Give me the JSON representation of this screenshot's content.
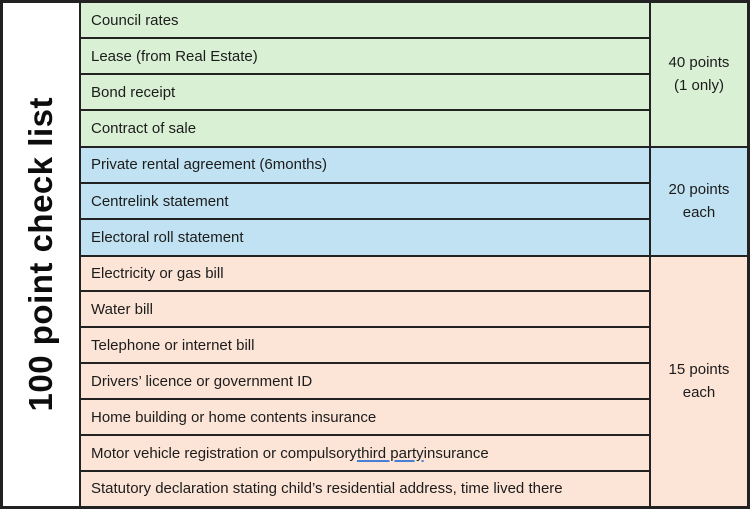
{
  "checklist": {
    "title": "100 point check list",
    "underline_color": "#4a7fd6",
    "text_color": "#1c1c1c",
    "border_color": "#222222",
    "sections": [
      {
        "name": "40-points-section",
        "bg": "#d9f0d4",
        "points": {
          "line1": "40 points",
          "line2": "(1 only)"
        },
        "rows": [
          {
            "text": "Council rates"
          },
          {
            "text": "Lease (from Real Estate)"
          },
          {
            "text": "Bond receipt"
          },
          {
            "text": "Contract of sale"
          }
        ]
      },
      {
        "name": "20-points-section",
        "bg": "#c0e2f2",
        "points": {
          "line1": "20 points",
          "line2": "each"
        },
        "rows": [
          {
            "text": "Private rental agreement (6months)"
          },
          {
            "text": "Centrelink statement"
          },
          {
            "text": "Electoral roll statement"
          }
        ]
      },
      {
        "name": "15-points-section",
        "bg": "#fce4d6",
        "points": {
          "line1": "15 points",
          "line2": "each"
        },
        "rows": [
          {
            "text": "Electricity or gas bill"
          },
          {
            "text": "Water bill"
          },
          {
            "text": "Telephone or internet bill"
          },
          {
            "text": "Drivers’ licence or government ID"
          },
          {
            "text": "Home building or home contents insurance"
          },
          {
            "pre": "Motor vehicle registration or compulsory ",
            "underlined": "third party",
            "post": " insurance"
          },
          {
            "text": "Statutory declaration stating child’s residential address, time lived there"
          }
        ]
      }
    ]
  }
}
